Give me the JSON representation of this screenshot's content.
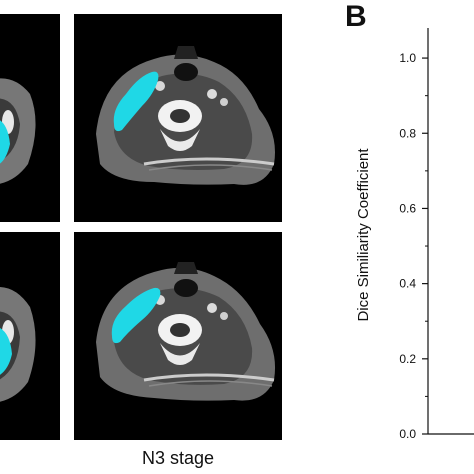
{
  "figure": {
    "panel_letter": "B",
    "stage_caption": "N3 stage"
  },
  "chart_data": {
    "type": "bar",
    "ylabel": "Dice Similiarity Coefficient",
    "yticks": [
      0.0,
      0.2,
      0.4,
      0.6,
      0.8,
      1.0
    ],
    "ytick_labels": [
      "0.0",
      "0.2",
      "0.4",
      "0.6",
      "0.8",
      "1.0"
    ],
    "ylim": [
      0,
      1.08
    ],
    "categories": [],
    "values": []
  },
  "colors": {
    "contour": "#1fd8e6",
    "scan_background": "#000000"
  }
}
